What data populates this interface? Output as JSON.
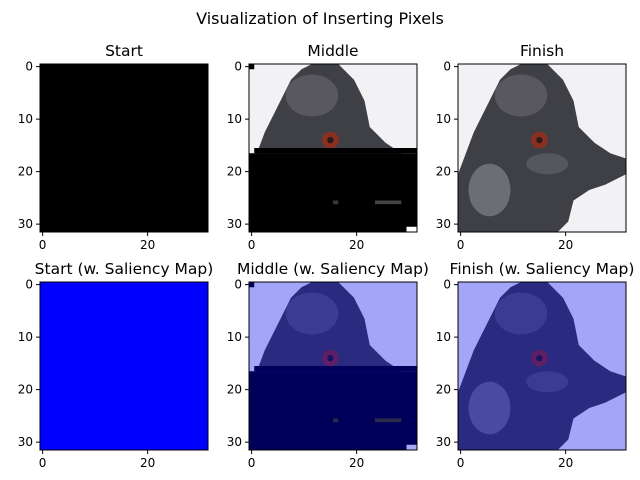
{
  "chart_data": {
    "type": "image-grid",
    "title": "Visualization of Inserting Pixels",
    "image_size": [
      32,
      32
    ],
    "x_ticks": [
      0,
      20
    ],
    "y_ticks": [
      0,
      10,
      20,
      30
    ],
    "panels": [
      {
        "title": "Start",
        "content": "all black"
      },
      {
        "title": "Middle",
        "content": "bird head photo, lower half black"
      },
      {
        "title": "Finish",
        "content": "bird head photo"
      },
      {
        "title": "Start (w. Saliency Map)",
        "content": "all blue"
      },
      {
        "title": "Middle (w. Saliency Map)",
        "content": "bird head photo, blue tinted, lower half dark navy"
      },
      {
        "title": "Finish (w. Saliency Map)",
        "content": "bird head photo, blue tinted"
      }
    ]
  },
  "colors": {
    "black_fill": "#000000",
    "saliency_blue": "#0000ff",
    "saliency_navy": "#00005a",
    "sky": "#f2f2f5",
    "feather_dark": "#3f4045",
    "feather_mid": "#5d5d63",
    "feather_light": "#808187",
    "eye": "#8a3020",
    "tint": "#0000ff"
  }
}
